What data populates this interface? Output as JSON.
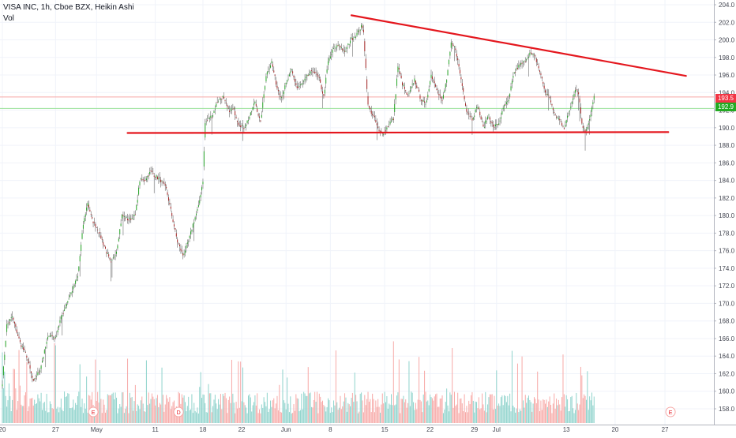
{
  "header": {
    "symbol_line": "VISA INC, 1h, Cboe BZX, Heikin Ashi",
    "volume_label": "Vol"
  },
  "price_tags": {
    "last_close": "193.5",
    "second_value": "192.9",
    "last_close_color": "#f23645",
    "second_value_color": "#22ab22"
  },
  "colors": {
    "up": "#26a69a",
    "candle_up": "#26a626",
    "candle_down": "#a62626",
    "vol_up": "#8fd3cc",
    "vol_down": "#f7a9a7",
    "trendline": "#e4171e",
    "grid": "#f0f3fa",
    "axis_text": "#434651"
  },
  "chart_data": {
    "type": "candlestick",
    "title": "VISA INC, 1h, Cboe BZX, Heikin Ashi",
    "ylim": [
      156.5,
      205.0
    ],
    "y_ticks": [
      "158.0",
      "160.0",
      "162.0",
      "164.0",
      "166.0",
      "168.0",
      "170.0",
      "172.0",
      "174.0",
      "176.0",
      "178.0",
      "180.0",
      "182.0",
      "184.0",
      "186.0",
      "188.0",
      "190.0",
      "192.0",
      "194.0",
      "196.0",
      "198.0",
      "200.0",
      "202.0",
      "204.0"
    ],
    "x_ticks": [
      {
        "label": "20",
        "index": 0
      },
      {
        "label": "27",
        "index": 48
      },
      {
        "label": "May",
        "index": 85
      },
      {
        "label": "11",
        "index": 138
      },
      {
        "label": "18",
        "index": 181
      },
      {
        "label": "22",
        "index": 216
      },
      {
        "label": "Jun",
        "index": 256
      },
      {
        "label": "8",
        "index": 296
      },
      {
        "label": "15",
        "index": 345
      },
      {
        "label": "22",
        "index": 386
      },
      {
        "label": "29",
        "index": 426
      },
      {
        "label": "Jul",
        "index": 446
      },
      {
        "label": "13",
        "index": 509
      },
      {
        "label": "20",
        "index": 553
      },
      {
        "label": "27",
        "index": 598
      }
    ],
    "x_count": 640,
    "series": [
      {
        "name": "VISA INC",
        "keypoints": [
          [
            0,
            161.0
          ],
          [
            4,
            167.5
          ],
          [
            9,
            168.5
          ],
          [
            16,
            165.5
          ],
          [
            22,
            164.0
          ],
          [
            28,
            161.0
          ],
          [
            34,
            162.5
          ],
          [
            42,
            166.5
          ],
          [
            48,
            166.0
          ],
          [
            52,
            168.0
          ],
          [
            58,
            170.0
          ],
          [
            63,
            171.5
          ],
          [
            68,
            173.0
          ],
          [
            73,
            179.0
          ],
          [
            77,
            181.5
          ],
          [
            81,
            179.5
          ],
          [
            86,
            178.5
          ],
          [
            92,
            176.5
          ],
          [
            98,
            174.5
          ],
          [
            103,
            176.0
          ],
          [
            108,
            180.0
          ],
          [
            114,
            179.5
          ],
          [
            120,
            180.0
          ],
          [
            124,
            184.0
          ],
          [
            128,
            184.0
          ],
          [
            134,
            185.0
          ],
          [
            138,
            184.5
          ],
          [
            143,
            184.0
          ],
          [
            148,
            183.0
          ],
          [
            153,
            180.0
          ],
          [
            158,
            177.0
          ],
          [
            163,
            175.5
          ],
          [
            168,
            177.0
          ],
          [
            172,
            179.0
          ],
          [
            177,
            181.0
          ],
          [
            181,
            184.0
          ],
          [
            183,
            190.5
          ],
          [
            186,
            191.0
          ],
          [
            190,
            191.5
          ],
          [
            194,
            193.0
          ],
          [
            199,
            193.5
          ],
          [
            204,
            192.0
          ],
          [
            209,
            192.0
          ],
          [
            213,
            190.5
          ],
          [
            218,
            190.0
          ],
          [
            224,
            191.5
          ],
          [
            228,
            193.0
          ],
          [
            233,
            190.5
          ],
          [
            238,
            196.0
          ],
          [
            243,
            197.5
          ],
          [
            248,
            194.5
          ],
          [
            252,
            193.5
          ],
          [
            256,
            195.0
          ],
          [
            261,
            196.5
          ],
          [
            266,
            194.5
          ],
          [
            271,
            195.0
          ],
          [
            276,
            196.0
          ],
          [
            281,
            196.5
          ],
          [
            286,
            195.5
          ],
          [
            290,
            193.5
          ],
          [
            294,
            197.5
          ],
          [
            299,
            199.0
          ],
          [
            304,
            199.5
          ],
          [
            309,
            198.5
          ],
          [
            314,
            200.0
          ],
          [
            319,
            200.5
          ],
          [
            324,
            201.5
          ],
          [
            326,
            201.0
          ],
          [
            330,
            192.5
          ],
          [
            336,
            191.0
          ],
          [
            340,
            189.5
          ],
          [
            345,
            189.5
          ],
          [
            349,
            190.5
          ],
          [
            353,
            191.0
          ],
          [
            357,
            197.0
          ],
          [
            361,
            195.0
          ],
          [
            366,
            193.5
          ],
          [
            372,
            195.5
          ],
          [
            377,
            193.5
          ],
          [
            382,
            192.5
          ],
          [
            387,
            196.0
          ],
          [
            392,
            194.5
          ],
          [
            397,
            193.0
          ],
          [
            401,
            195.5
          ],
          [
            405,
            199.5
          ],
          [
            409,
            199.0
          ],
          [
            414,
            195.5
          ],
          [
            419,
            192.0
          ],
          [
            424,
            191.0
          ],
          [
            429,
            192.5
          ],
          [
            434,
            190.0
          ],
          [
            439,
            191.5
          ],
          [
            443,
            190.0
          ],
          [
            448,
            190.5
          ],
          [
            453,
            192.5
          ],
          [
            457,
            193.0
          ],
          [
            461,
            196.0
          ],
          [
            466,
            197.0
          ],
          [
            471,
            197.5
          ],
          [
            476,
            198.5
          ],
          [
            481,
            198.0
          ],
          [
            486,
            196.0
          ],
          [
            490,
            194.0
          ],
          [
            494,
            193.5
          ],
          [
            498,
            191.5
          ],
          [
            502,
            191.0
          ],
          [
            507,
            190.0
          ],
          [
            512,
            192.0
          ],
          [
            517,
            194.5
          ],
          [
            520,
            194.0
          ],
          [
            523,
            190.5
          ],
          [
            526,
            189.5
          ],
          [
            530,
            191.0
          ],
          [
            534,
            193.5
          ]
        ]
      }
    ],
    "trendlines": [
      {
        "name": "resistance",
        "points": [
          [
            315,
            202.8
          ],
          [
            617,
            195.9
          ]
        ]
      },
      {
        "name": "support",
        "points": [
          [
            113,
            189.4
          ],
          [
            601,
            189.5
          ]
        ]
      }
    ],
    "earnings_markers": [
      {
        "label": "E",
        "index": 82
      },
      {
        "label": "D",
        "index": 159
      },
      {
        "label": "E",
        "index": 603
      }
    ],
    "volume": {
      "name": "Vol",
      "max": 100
    },
    "horizontal_lines": [
      193.5,
      192.2
    ]
  }
}
